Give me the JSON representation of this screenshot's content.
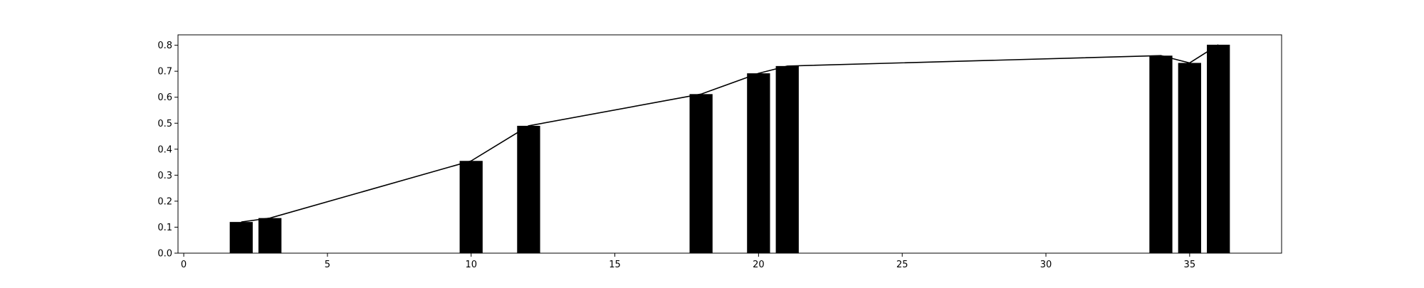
{
  "chart_data": {
    "type": "bar",
    "x": [
      2,
      3,
      10,
      12,
      18,
      20,
      21,
      34,
      35,
      36
    ],
    "values": [
      0.12,
      0.135,
      0.355,
      0.49,
      0.612,
      0.692,
      0.72,
      0.76,
      0.732,
      0.802
    ],
    "line_values": [
      0.12,
      0.135,
      0.355,
      0.49,
      0.612,
      0.692,
      0.72,
      0.76,
      0.732,
      0.802
    ],
    "bar_width": 0.8,
    "xlim": [
      -0.2,
      38.2
    ],
    "ylim": [
      0.0,
      0.84
    ],
    "xticks": [
      0,
      5,
      10,
      15,
      20,
      25,
      30,
      35
    ],
    "yticks": [
      0.0,
      0.1,
      0.2,
      0.3,
      0.4,
      0.5,
      0.6,
      0.7,
      0.8
    ],
    "grid": false,
    "colors": {
      "bar": "#000000",
      "line": "#000000",
      "axes": "#000000"
    }
  }
}
